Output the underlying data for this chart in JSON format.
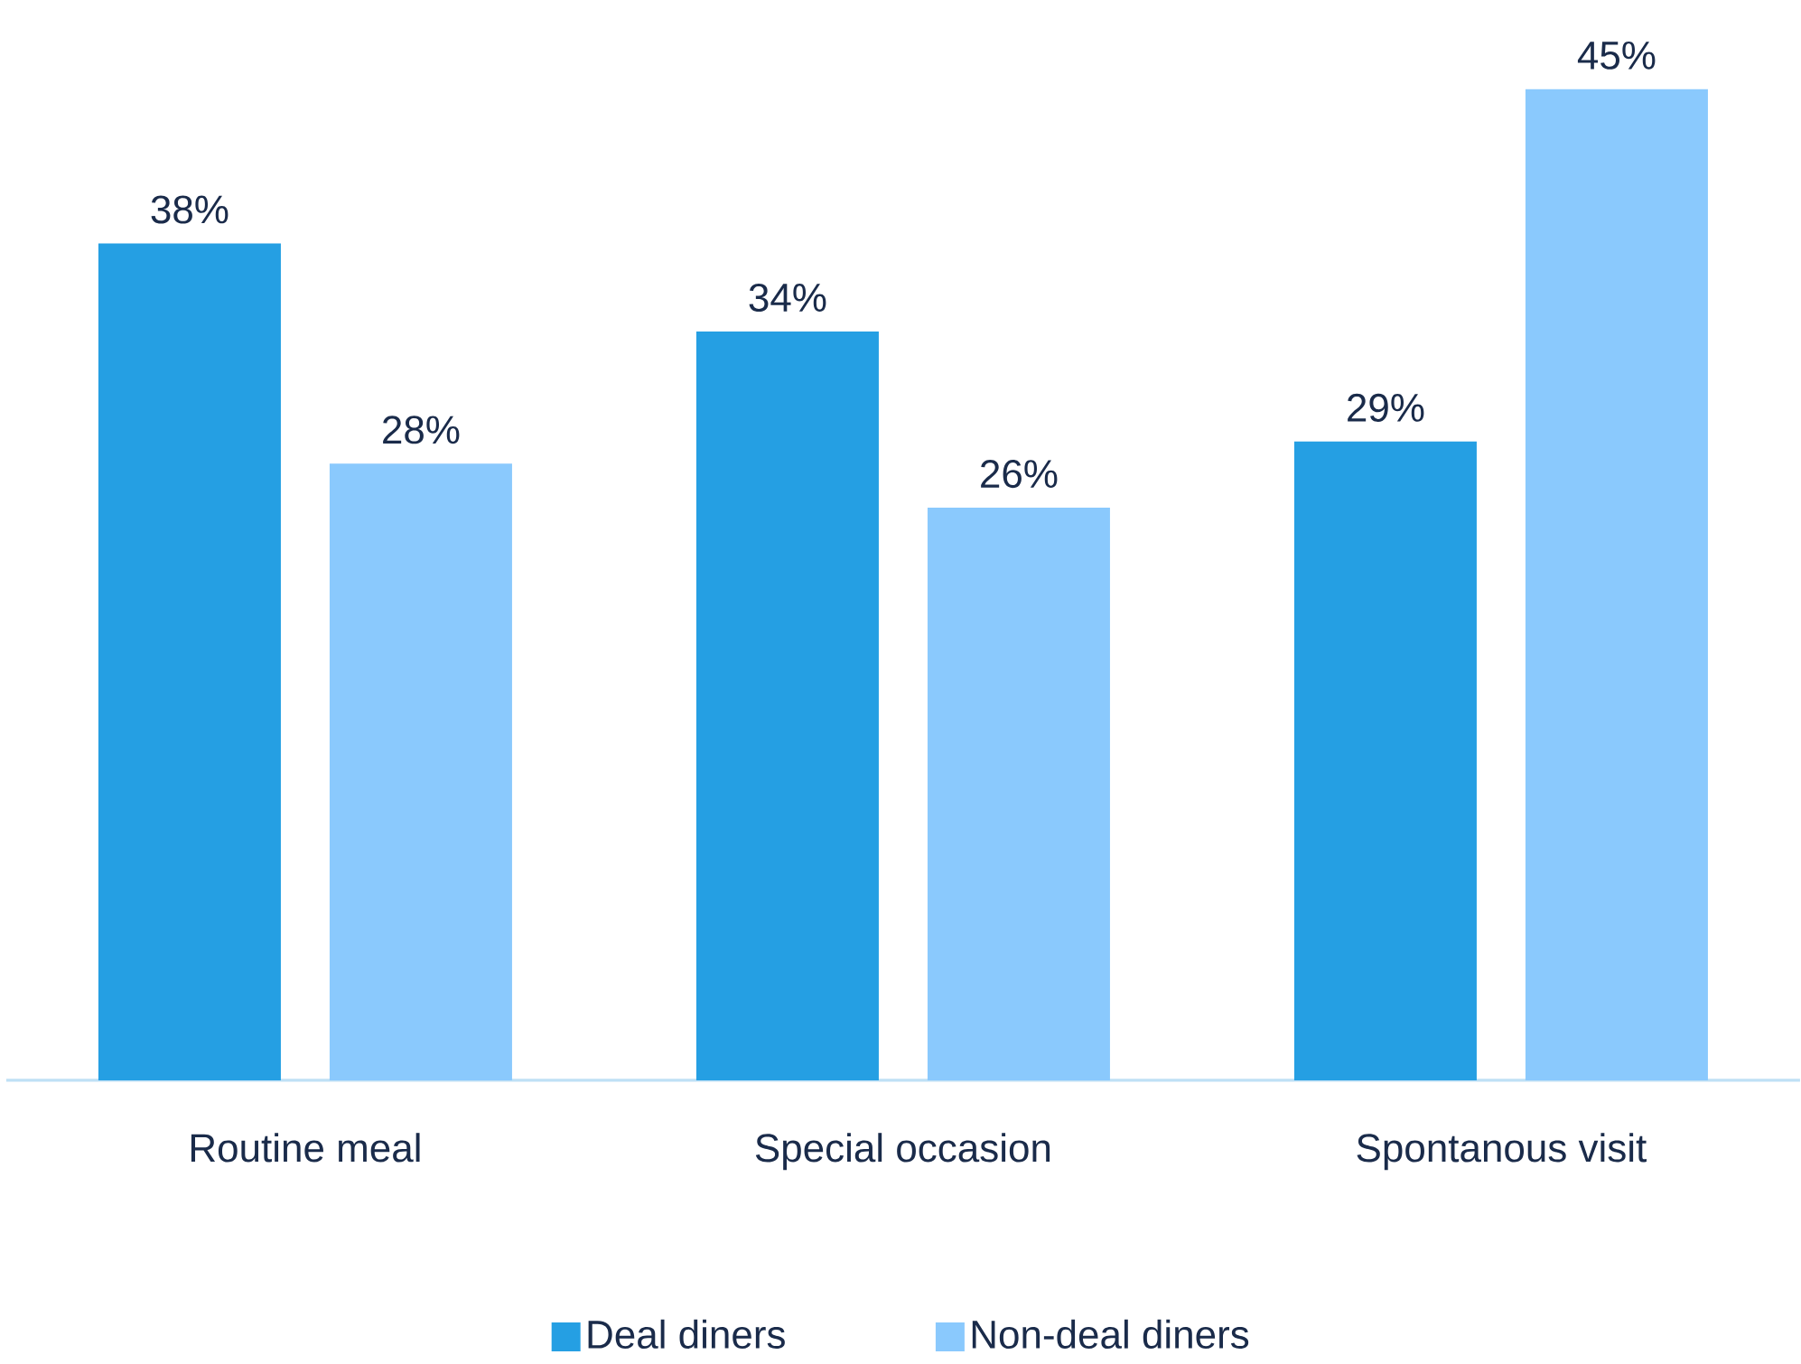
{
  "chart_data": {
    "type": "bar",
    "categories": [
      "Routine meal",
      "Special occasion",
      "Spontanous visit"
    ],
    "series": [
      {
        "name": "Deal diners",
        "color": "#259fe3",
        "values": [
          38,
          34,
          29
        ],
        "value_labels": [
          "38%",
          "34%",
          "29%"
        ]
      },
      {
        "name": "Non-deal diners",
        "color": "#8ac9fd",
        "values": [
          28,
          26,
          45
        ],
        "value_labels": [
          "28%",
          "26%",
          "45%"
        ]
      }
    ],
    "legend": "bottom"
  }
}
